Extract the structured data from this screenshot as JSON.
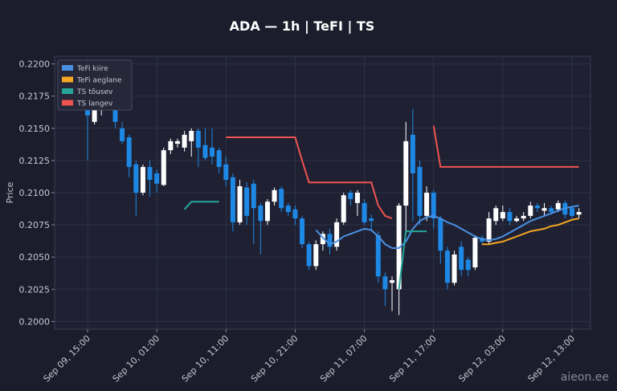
{
  "chart_data": {
    "type": "candlestick",
    "title": "ADA — 1h  |  TeFI  |  TS",
    "y_label": "Price",
    "watermark": "aieon.ee",
    "up_color": "#ffffff",
    "down_color": "#1e88e5",
    "grid": true,
    "legend": "upper left",
    "ylim": [
      0.1994,
      0.2206
    ],
    "yticks": [
      {
        "value": 0.2,
        "label": "0.2000"
      },
      {
        "value": 0.2025,
        "label": "0.2025"
      },
      {
        "value": 0.205,
        "label": "0.2050"
      },
      {
        "value": 0.2075,
        "label": "0.2075"
      },
      {
        "value": 0.21,
        "label": "0.2100"
      },
      {
        "value": 0.2125,
        "label": "0.2125"
      },
      {
        "value": 0.215,
        "label": "0.2150"
      },
      {
        "value": 0.2175,
        "label": "0.2175"
      },
      {
        "value": 0.22,
        "label": "0.2200"
      }
    ],
    "categories": [
      "Sep 09, 15:00",
      null,
      null,
      null,
      null,
      null,
      null,
      null,
      null,
      null,
      "Sep 10, 01:00",
      null,
      null,
      null,
      null,
      null,
      null,
      null,
      null,
      null,
      "Sep 10, 11:00",
      null,
      null,
      null,
      null,
      null,
      null,
      null,
      null,
      null,
      "Sep 10, 21:00",
      null,
      null,
      null,
      null,
      null,
      null,
      null,
      null,
      null,
      "Sep 11, 07:00",
      null,
      null,
      null,
      null,
      null,
      null,
      null,
      null,
      null,
      "Sep 11, 17:00",
      null,
      null,
      null,
      null,
      null,
      null,
      null,
      null,
      null,
      "Sep 12, 03:00",
      null,
      null,
      null,
      null,
      null,
      null,
      null,
      null,
      null,
      "Sep 12, 13:00",
      null
    ],
    "open": [
      0.218,
      0.2155,
      0.2165,
      0.218,
      0.2175,
      0.215,
      0.2143,
      0.2122,
      0.21,
      0.212,
      0.2115,
      0.2106,
      0.2133,
      0.2138,
      0.2135,
      0.214,
      0.2148,
      0.2137,
      0.2135,
      0.2133,
      0.2122,
      0.2112,
      0.2077,
      0.2104,
      0.2107,
      0.209,
      0.2078,
      0.2093,
      0.2103,
      0.209,
      0.2087,
      0.208,
      0.206,
      0.2043,
      0.206,
      0.2068,
      0.2058,
      0.2077,
      0.21,
      0.2092,
      0.2092,
      0.208,
      0.2067,
      0.2035,
      0.203,
      0.2025,
      0.209,
      0.2145,
      0.212,
      0.2082,
      0.21,
      0.208,
      0.2055,
      0.203,
      0.2058,
      0.2048,
      0.2042,
      0.2065,
      0.2062,
      0.2078,
      0.208,
      0.2085,
      0.2078,
      0.208,
      0.2082,
      0.209,
      0.2086,
      0.2088,
      0.2087,
      0.2092,
      0.2088,
      0.2083
    ],
    "high": [
      0.219,
      0.219,
      0.219,
      0.2185,
      0.218,
      0.2155,
      0.2145,
      0.2125,
      0.2122,
      0.2125,
      0.2118,
      0.2135,
      0.2142,
      0.2142,
      0.2148,
      0.215,
      0.215,
      0.215,
      0.215,
      0.2135,
      0.2128,
      0.2115,
      0.211,
      0.2108,
      0.211,
      0.2092,
      0.2095,
      0.2104,
      0.2105,
      0.2092,
      0.209,
      0.2082,
      0.2062,
      0.2063,
      0.207,
      0.2072,
      0.208,
      0.21,
      0.2102,
      0.2102,
      0.2095,
      0.2083,
      0.207,
      0.2038,
      0.2035,
      0.2092,
      0.2155,
      0.2165,
      0.2125,
      0.2105,
      0.2102,
      0.2082,
      0.2058,
      0.2055,
      0.2062,
      0.205,
      0.2067,
      0.2067,
      0.2085,
      0.209,
      0.209,
      0.2088,
      0.2082,
      0.2085,
      0.2093,
      0.2092,
      0.2092,
      0.209,
      0.2094,
      0.2094,
      0.209,
      0.2088
    ],
    "low": [
      0.2125,
      0.2153,
      0.216,
      0.2165,
      0.215,
      0.2138,
      0.2112,
      0.2082,
      0.2098,
      0.2097,
      0.21,
      0.2105,
      0.213,
      0.2135,
      0.2132,
      0.2128,
      0.212,
      0.2125,
      0.2122,
      0.2115,
      0.2105,
      0.207,
      0.2075,
      0.2075,
      0.206,
      0.2052,
      0.2075,
      0.209,
      0.2085,
      0.2082,
      0.2075,
      0.2057,
      0.204,
      0.204,
      0.2055,
      0.2052,
      0.2055,
      0.2075,
      0.209,
      0.2082,
      0.2075,
      0.207,
      0.203,
      0.2012,
      0.2008,
      0.2005,
      0.207,
      0.2078,
      0.2075,
      0.2078,
      0.2072,
      0.2045,
      0.2025,
      0.2028,
      0.2035,
      0.2035,
      0.204,
      0.206,
      0.206,
      0.2075,
      0.2078,
      0.2075,
      0.2077,
      0.2078,
      0.208,
      0.2085,
      0.2082,
      0.2083,
      0.2085,
      0.208,
      0.208,
      0.208
    ],
    "close": [
      0.216,
      0.2185,
      0.218,
      0.2172,
      0.2155,
      0.214,
      0.212,
      0.21,
      0.212,
      0.211,
      0.2107,
      0.2133,
      0.214,
      0.214,
      0.2145,
      0.2148,
      0.2135,
      0.2127,
      0.2128,
      0.212,
      0.211,
      0.2077,
      0.2105,
      0.2082,
      0.2088,
      0.2078,
      0.2093,
      0.2102,
      0.2088,
      0.2085,
      0.208,
      0.206,
      0.2043,
      0.206,
      0.2068,
      0.2058,
      0.2077,
      0.2098,
      0.2095,
      0.21,
      0.2077,
      0.2078,
      0.2035,
      0.2025,
      0.2032,
      0.209,
      0.214,
      0.2115,
      0.2082,
      0.21,
      0.208,
      0.2055,
      0.203,
      0.2052,
      0.204,
      0.204,
      0.2065,
      0.2062,
      0.208,
      0.2088,
      0.2085,
      0.2078,
      0.208,
      0.2082,
      0.209,
      0.2088,
      0.2088,
      0.2085,
      0.2092,
      0.2083,
      0.2082,
      0.2085
    ],
    "series": [
      {
        "name": "TeFi kiire",
        "color": "#4a90e2",
        "values": [
          null,
          null,
          null,
          null,
          null,
          null,
          null,
          null,
          null,
          null,
          null,
          null,
          null,
          null,
          null,
          null,
          null,
          null,
          null,
          null,
          null,
          null,
          null,
          null,
          null,
          null,
          null,
          null,
          null,
          null,
          null,
          null,
          null,
          0.2071,
          0.2065,
          0.206,
          0.2062,
          0.2066,
          0.2068,
          0.207,
          0.2072,
          0.2071,
          0.2066,
          0.206,
          0.2057,
          0.2057,
          0.2062,
          0.2072,
          0.2078,
          0.2081,
          0.2082,
          0.208,
          0.2077,
          0.2075,
          0.2072,
          0.2069,
          0.2066,
          0.2064,
          0.2063,
          0.2064,
          0.2066,
          0.2069,
          0.2072,
          0.2075,
          0.2078,
          0.208,
          0.2082,
          0.2084,
          0.2086,
          0.2088,
          0.2089,
          0.209
        ]
      },
      {
        "name": "TeFi aeglane",
        "color": "#f5a623",
        "values": [
          null,
          null,
          null,
          null,
          null,
          null,
          null,
          null,
          null,
          null,
          null,
          null,
          null,
          null,
          null,
          null,
          null,
          null,
          null,
          null,
          null,
          null,
          null,
          null,
          null,
          null,
          null,
          null,
          null,
          null,
          null,
          null,
          null,
          null,
          null,
          null,
          null,
          null,
          null,
          null,
          null,
          null,
          null,
          null,
          null,
          null,
          null,
          null,
          null,
          null,
          null,
          null,
          null,
          null,
          null,
          null,
          null,
          0.206,
          0.206,
          0.2061,
          0.2062,
          0.2064,
          0.2066,
          0.2068,
          0.207,
          0.2071,
          0.2072,
          0.2074,
          0.2075,
          0.2077,
          0.2079,
          0.208
        ]
      },
      {
        "name": "TS tõusev",
        "color": "#26a69a",
        "values": [
          null,
          null,
          null,
          null,
          null,
          null,
          null,
          null,
          null,
          null,
          null,
          null,
          null,
          null,
          0.2087,
          0.2093,
          0.2093,
          0.2093,
          0.2093,
          0.2093,
          null,
          null,
          null,
          null,
          null,
          null,
          null,
          null,
          null,
          null,
          null,
          null,
          null,
          null,
          null,
          null,
          null,
          null,
          null,
          null,
          null,
          null,
          null,
          null,
          null,
          0.2025,
          0.207,
          0.207,
          0.207,
          0.207,
          null,
          null,
          null,
          null,
          null,
          null,
          null,
          null,
          null,
          null,
          null,
          null,
          null,
          null,
          null,
          null,
          null,
          null,
          null,
          null,
          null,
          null
        ]
      },
      {
        "name": "TS langev",
        "color": "#ef5350",
        "values": [
          null,
          null,
          null,
          null,
          null,
          null,
          null,
          null,
          null,
          null,
          null,
          null,
          null,
          null,
          null,
          null,
          null,
          null,
          null,
          null,
          0.2143,
          0.2143,
          0.2143,
          0.2143,
          0.2143,
          0.2143,
          0.2143,
          0.2143,
          0.2143,
          0.2143,
          0.2143,
          0.2125,
          0.2108,
          0.2108,
          0.2108,
          0.2108,
          0.2108,
          0.2108,
          0.2108,
          0.2108,
          0.2108,
          0.2108,
          0.209,
          0.2082,
          0.208,
          null,
          null,
          null,
          null,
          null,
          0.2152,
          0.212,
          0.212,
          0.212,
          0.212,
          0.212,
          0.212,
          0.212,
          0.212,
          0.212,
          0.212,
          0.212,
          0.212,
          0.212,
          0.212,
          0.212,
          0.212,
          0.212,
          0.212,
          0.212,
          0.212,
          0.212
        ]
      }
    ]
  }
}
